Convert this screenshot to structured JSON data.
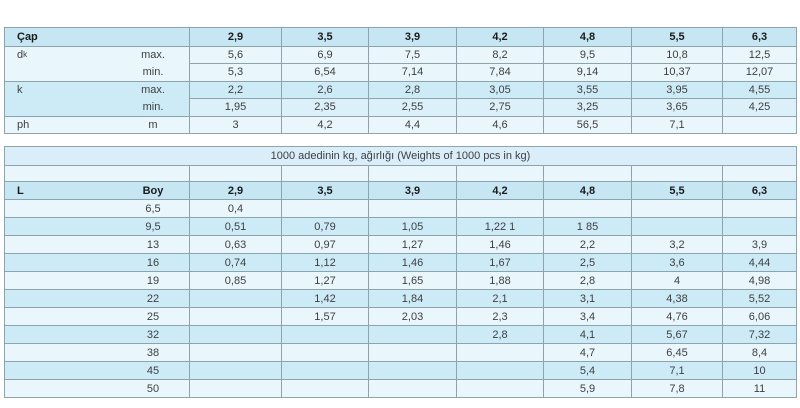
{
  "table1": {
    "corner_label": "Çap",
    "columns": [
      "2,9",
      "3,5",
      "3,9",
      "4,2",
      "4,8",
      "5,5",
      "6,3"
    ],
    "rows": [
      {
        "label": "d",
        "label_sub": "k",
        "measure": "max.",
        "band": "light",
        "divider": "full",
        "values": [
          "5,6",
          "6,9",
          "7,5",
          "8,2",
          "9,5",
          "10,8",
          "12,5"
        ]
      },
      {
        "label": "",
        "measure": "min.",
        "band": "light",
        "divider": "partial",
        "values": [
          "5,3",
          "6,54",
          "7,14",
          "7,84",
          "9,14",
          "10,37",
          "12,07"
        ]
      },
      {
        "label": "k",
        "measure": "max.",
        "band": "med",
        "divider": "full",
        "values": [
          "2,2",
          "2,6",
          "2,8",
          "3,05",
          "3,55",
          "3,95",
          "4,55"
        ]
      },
      {
        "label": "",
        "measure": "min.",
        "band": "medlight",
        "label_band": "med",
        "divider": "partial",
        "values": [
          "1,95",
          "2,35",
          "2,55",
          "2,75",
          "3,25",
          "3,65",
          "4,25"
        ]
      },
      {
        "label": "ph",
        "measure": "m",
        "band": "light",
        "divider": "full",
        "values": [
          "3",
          "4,2",
          "4,4",
          "4,6",
          "56,5",
          "7,1",
          ""
        ]
      }
    ]
  },
  "table2": {
    "title": "1000 adedinin kg, ağırlığı (Weights of 1000 pcs in kg)",
    "col_l": "L",
    "col_boy": "Boy",
    "columns": [
      "2,9",
      "3,5",
      "3,9",
      "4,2",
      "4,8",
      "5,5",
      "6,3"
    ],
    "rows": [
      {
        "boy": "6,5",
        "values": [
          "0,4",
          "",
          "",
          "",
          "",
          "",
          ""
        ]
      },
      {
        "boy": "9,5",
        "values": [
          "0,51",
          "0,79",
          "1,05",
          "1,22 1",
          "1 85",
          "",
          ""
        ]
      },
      {
        "boy": "13",
        "values": [
          "0,63",
          "0,97",
          "1,27",
          "1,46",
          "2,2",
          "3,2",
          "3,9"
        ]
      },
      {
        "boy": "16",
        "values": [
          "0,74",
          "1,12",
          "1,46",
          "1,67",
          "2,5",
          "3,6",
          "4,44"
        ]
      },
      {
        "boy": "19",
        "values": [
          "0,85",
          "1,27",
          "1,65",
          "1,88",
          "2,8",
          "4",
          "4,98"
        ]
      },
      {
        "boy": "22",
        "values": [
          "",
          "1,42",
          "1,84",
          "2,1",
          "3,1",
          "4,38",
          "5,52"
        ]
      },
      {
        "boy": "25",
        "values": [
          "",
          "1,57",
          "2,03",
          "2,3",
          "3,4",
          "4,76",
          "6,06"
        ]
      },
      {
        "boy": "32",
        "values": [
          "",
          "",
          "",
          "2,8",
          "4,1",
          "5,67",
          "7,32"
        ]
      },
      {
        "boy": "38",
        "values": [
          "",
          "",
          "",
          "",
          "4,7",
          "6,45",
          "8,4"
        ]
      },
      {
        "boy": "45",
        "values": [
          "",
          "",
          "",
          "",
          "5,4",
          "7,1",
          "10"
        ]
      },
      {
        "boy": "50",
        "values": [
          "",
          "",
          "",
          "",
          "5,9",
          "7,8",
          "11"
        ]
      }
    ]
  },
  "colors": {
    "header_row": "#c6e6f4",
    "light_row": "#e9f6fc",
    "medium_row": "#cdeaf7",
    "title_row": "#d9eef8",
    "border": "#8fa3ac"
  }
}
